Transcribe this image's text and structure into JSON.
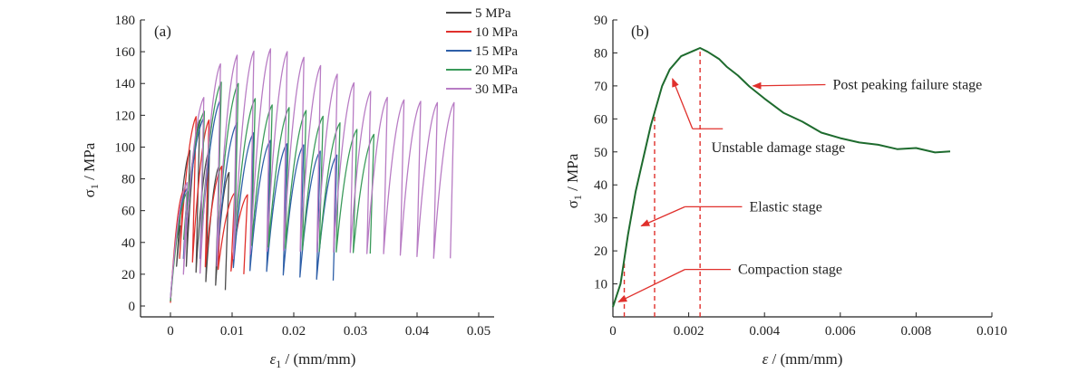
{
  "chart_data": [
    {
      "panel": "(a)",
      "type": "line",
      "xlabel_main": "ε",
      "xlabel_sub": "1",
      "xlabel_rest": " / (mm/mm)",
      "ylabel_main": "σ",
      "ylabel_sub": "1",
      "ylabel_rest": " / MPa",
      "xlim": [
        0,
        0.05
      ],
      "ylim": [
        0,
        180
      ],
      "xticks": [
        "0",
        "0.01",
        "0.02",
        "0.03",
        "0.04",
        "0.05"
      ],
      "yticks": [
        "0",
        "20",
        "40",
        "60",
        "80",
        "100",
        "120",
        "140",
        "160",
        "180"
      ],
      "legend_position": "top-right",
      "series": [
        {
          "name": "5 MPa",
          "color": "#4a4a4a",
          "envelope": [
            [
              0,
              3
            ],
            [
              0.001,
              30
            ],
            [
              0.002,
              65
            ],
            [
              0.003,
              95
            ],
            [
              0.004,
              112
            ],
            [
              0.0045,
              120
            ],
            [
              0.005,
              114
            ],
            [
              0.006,
              102
            ],
            [
              0.007,
              92
            ],
            [
              0.008,
              88
            ],
            [
              0.009,
              86
            ],
            [
              0.0095,
              84
            ]
          ],
          "unload_min": [
            [
              0.004,
              25
            ],
            [
              0.005,
              20
            ],
            [
              0.006,
              16
            ],
            [
              0.007,
              14
            ],
            [
              0.008,
              13
            ],
            [
              0.009,
              11
            ],
            [
              0.0095,
              10
            ]
          ]
        },
        {
          "name": "10 MPa",
          "color": "#e0302c",
          "envelope": [
            [
              0,
              2
            ],
            [
              0.001,
              32
            ],
            [
              0.002,
              70
            ],
            [
              0.003,
              100
            ],
            [
              0.004,
              118
            ],
            [
              0.005,
              125
            ],
            [
              0.006,
              120
            ],
            [
              0.007,
              108
            ],
            [
              0.008,
              92
            ],
            [
              0.009,
              80
            ],
            [
              0.01,
              72
            ],
            [
              0.011,
              70
            ],
            [
              0.0125,
              70
            ]
          ],
          "unload_min": [
            [
              0.003,
              30
            ],
            [
              0.004,
              28
            ],
            [
              0.005,
              26
            ],
            [
              0.006,
              25
            ],
            [
              0.007,
              24
            ],
            [
              0.008,
              23
            ],
            [
              0.009,
              23
            ],
            [
              0.01,
              22
            ],
            [
              0.011,
              22
            ],
            [
              0.012,
              21
            ],
            [
              0.0125,
              20
            ]
          ]
        },
        {
          "name": "15 MPa",
          "color": "#2e5fa8",
          "envelope": [
            [
              0,
              5
            ],
            [
              0.002,
              60
            ],
            [
              0.004,
              100
            ],
            [
              0.006,
              126
            ],
            [
              0.007,
              133
            ],
            [
              0.008,
              130
            ],
            [
              0.009,
              126
            ],
            [
              0.01,
              120
            ],
            [
              0.011,
              114
            ],
            [
              0.013,
              110
            ],
            [
              0.015,
              106
            ],
            [
              0.017,
              103
            ],
            [
              0.019,
              102
            ],
            [
              0.021,
              102
            ],
            [
              0.023,
              100
            ],
            [
              0.025,
              96
            ],
            [
              0.027,
              95
            ]
          ],
          "unload_min": [
            [
              0.006,
              30
            ],
            [
              0.008,
              28
            ],
            [
              0.01,
              25
            ],
            [
              0.012,
              23
            ],
            [
              0.014,
              22
            ],
            [
              0.016,
              22
            ],
            [
              0.018,
              20
            ],
            [
              0.02,
              19
            ],
            [
              0.022,
              18
            ],
            [
              0.024,
              17
            ],
            [
              0.026,
              16
            ]
          ]
        },
        {
          "name": "20 MPa",
          "color": "#3a9a5a",
          "envelope": [
            [
              0,
              3
            ],
            [
              0.002,
              55
            ],
            [
              0.004,
              100
            ],
            [
              0.006,
              130
            ],
            [
              0.008,
              140
            ],
            [
              0.0095,
              145
            ],
            [
              0.011,
              140
            ],
            [
              0.013,
              132
            ],
            [
              0.015,
              128
            ],
            [
              0.017,
              126
            ],
            [
              0.019,
              125
            ],
            [
              0.021,
              124
            ],
            [
              0.023,
              122
            ],
            [
              0.025,
              119
            ],
            [
              0.027,
              116
            ],
            [
              0.029,
              113
            ],
            [
              0.031,
              110
            ],
            [
              0.033,
              108
            ]
          ],
          "unload_min": [
            [
              0.008,
              42
            ],
            [
              0.011,
              40
            ],
            [
              0.014,
              38
            ],
            [
              0.017,
              37
            ],
            [
              0.02,
              36
            ],
            [
              0.023,
              35
            ],
            [
              0.026,
              34
            ],
            [
              0.029,
              34
            ],
            [
              0.032,
              33
            ],
            [
              0.033,
              33
            ]
          ]
        },
        {
          "name": "30 MPa",
          "color": "#b87cc4",
          "envelope": [
            [
              0,
              5
            ],
            [
              0.002,
              60
            ],
            [
              0.004,
              110
            ],
            [
              0.006,
              140
            ],
            [
              0.008,
              152
            ],
            [
              0.01,
              157
            ],
            [
              0.013,
              160
            ],
            [
              0.016,
              162
            ],
            [
              0.019,
              160
            ],
            [
              0.022,
              156
            ],
            [
              0.025,
              150
            ],
            [
              0.028,
              144
            ],
            [
              0.031,
              138
            ],
            [
              0.034,
              132
            ],
            [
              0.037,
              130
            ],
            [
              0.04,
              129
            ],
            [
              0.043,
              128
            ],
            [
              0.046,
              128
            ]
          ],
          "unload_min": [
            [
              0.005,
              20
            ],
            [
              0.008,
              25
            ],
            [
              0.011,
              30
            ],
            [
              0.014,
              33
            ],
            [
              0.017,
              35
            ],
            [
              0.02,
              35
            ],
            [
              0.023,
              34
            ],
            [
              0.026,
              34
            ],
            [
              0.029,
              34
            ],
            [
              0.032,
              33
            ],
            [
              0.035,
              33
            ],
            [
              0.038,
              32
            ],
            [
              0.041,
              31
            ],
            [
              0.0435,
              30
            ]
          ]
        }
      ]
    },
    {
      "panel": "(b)",
      "type": "line",
      "xlabel_main": "ε",
      "xlabel_rest": " / (mm/mm)",
      "ylabel_main": "σ",
      "ylabel_sub": "1",
      "ylabel_rest": " / MPa",
      "xlim": [
        0,
        0.01
      ],
      "ylim": [
        0,
        90
      ],
      "xticks": [
        "0",
        "0.002",
        "0.004",
        "0.006",
        "0.008",
        "0.010"
      ],
      "yticks": [
        "10",
        "20",
        "30",
        "40",
        "50",
        "60",
        "70",
        "80",
        "90"
      ],
      "series": [
        {
          "color": "#1e6b2e",
          "x": [
            0,
            0.0002,
            0.0004,
            0.0006,
            0.0008,
            0.001,
            0.0011,
            0.0013,
            0.0015,
            0.0018,
            0.002,
            0.0022,
            0.0023,
            0.0025,
            0.0028,
            0.003,
            0.0033,
            0.0036,
            0.004,
            0.0045,
            0.005,
            0.0055,
            0.006,
            0.0065,
            0.007,
            0.0075,
            0.008,
            0.0085,
            0.0089
          ],
          "y": [
            3,
            10,
            25,
            38,
            48,
            58,
            62,
            70,
            75,
            79,
            80,
            81,
            81.5,
            80.5,
            78,
            76,
            73,
            70,
            66,
            62,
            59,
            56,
            54,
            53,
            52,
            51,
            51,
            50,
            50
          ]
        }
      ],
      "stage_lines_x": [
        0.0003,
        0.0011,
        0.0023
      ],
      "stage_line_color": "#e0302c",
      "annotations": [
        {
          "text": "Post peaking failure stage",
          "point": [
            0.0036,
            70
          ],
          "text_at": [
            0.0058,
            69
          ]
        },
        {
          "text": "Unstable damage stage",
          "point": [
            0.0015,
            73
          ],
          "text_at": [
            0.0026,
            50
          ]
        },
        {
          "text": "Elastic stage",
          "point": [
            0.0007,
            27
          ],
          "text_at": [
            0.0036,
            32
          ]
        },
        {
          "text": "Compaction stage",
          "point": [
            0.0001,
            4
          ],
          "text_at": [
            0.0033,
            13
          ]
        }
      ]
    }
  ]
}
